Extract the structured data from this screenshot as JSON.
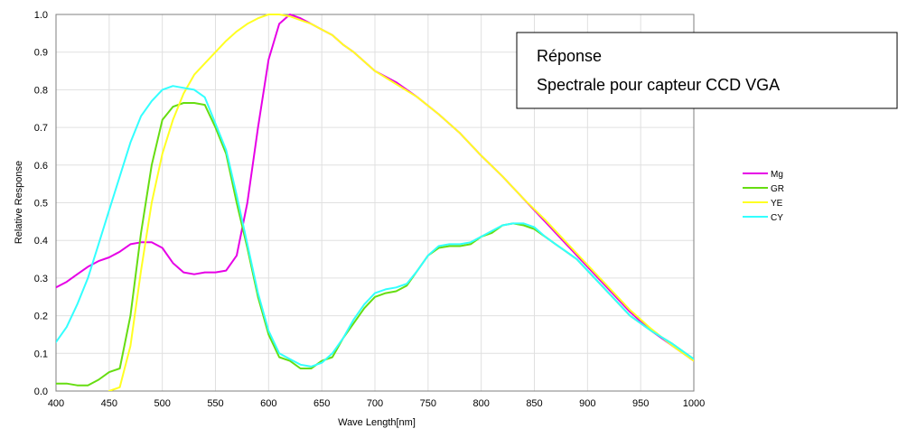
{
  "chart_data": {
    "type": "line",
    "title": "",
    "xlabel": "Wave Length[nm]",
    "ylabel": "Relative Response",
    "xlim": [
      400,
      1000
    ],
    "ylim": [
      0.0,
      1.0
    ],
    "xticks": [
      "400",
      "450",
      "500",
      "550",
      "600",
      "650",
      "700",
      "750",
      "800",
      "850",
      "900",
      "950",
      "1000"
    ],
    "yticks": [
      "0.0",
      "0.1",
      "0.2",
      "0.3",
      "0.4",
      "0.5",
      "0.6",
      "0.7",
      "0.8",
      "0.9",
      "1.0"
    ],
    "grid": true,
    "legend_position": "right",
    "annotation": {
      "line1": "Réponse",
      "line2": "Spectrale pour capteur CCD VGA"
    },
    "series": [
      {
        "name": "Mg",
        "color": "#e600e6",
        "x": [
          400,
          410,
          420,
          430,
          440,
          450,
          460,
          470,
          480,
          490,
          500,
          510,
          520,
          530,
          540,
          550,
          560,
          570,
          580,
          590,
          600,
          610,
          620,
          630,
          640,
          650,
          660,
          670,
          680,
          690,
          700,
          720,
          740,
          760,
          780,
          800,
          820,
          840,
          860,
          880,
          900,
          920,
          940,
          960,
          980,
          1000
        ],
        "y": [
          0.275,
          0.29,
          0.31,
          0.33,
          0.345,
          0.355,
          0.37,
          0.39,
          0.395,
          0.395,
          0.38,
          0.34,
          0.315,
          0.31,
          0.315,
          0.315,
          0.32,
          0.36,
          0.5,
          0.7,
          0.88,
          0.975,
          1.0,
          0.99,
          0.975,
          0.96,
          0.945,
          0.92,
          0.9,
          0.875,
          0.85,
          0.82,
          0.78,
          0.735,
          0.685,
          0.625,
          0.57,
          0.51,
          0.45,
          0.39,
          0.33,
          0.27,
          0.21,
          0.16,
          0.12,
          0.08
        ]
      },
      {
        "name": "GR",
        "color": "#66dd11",
        "x": [
          400,
          410,
          420,
          430,
          440,
          450,
          460,
          470,
          480,
          490,
          500,
          510,
          520,
          530,
          540,
          550,
          560,
          570,
          580,
          590,
          600,
          610,
          620,
          630,
          640,
          650,
          660,
          670,
          680,
          690,
          700,
          710,
          720,
          730,
          740,
          750,
          760,
          770,
          780,
          790,
          800,
          810,
          820,
          830,
          840,
          850,
          860,
          870,
          880,
          890,
          900,
          920,
          940,
          960,
          980,
          1000
        ],
        "y": [
          0.02,
          0.02,
          0.015,
          0.015,
          0.03,
          0.05,
          0.06,
          0.2,
          0.42,
          0.6,
          0.72,
          0.755,
          0.765,
          0.765,
          0.76,
          0.7,
          0.63,
          0.5,
          0.38,
          0.25,
          0.15,
          0.09,
          0.08,
          0.06,
          0.06,
          0.08,
          0.09,
          0.14,
          0.18,
          0.22,
          0.25,
          0.26,
          0.265,
          0.28,
          0.32,
          0.36,
          0.38,
          0.385,
          0.385,
          0.39,
          0.41,
          0.42,
          0.44,
          0.445,
          0.44,
          0.43,
          0.41,
          0.39,
          0.37,
          0.35,
          0.32,
          0.26,
          0.2,
          0.16,
          0.125,
          0.085
        ]
      },
      {
        "name": "YE",
        "color": "#ffff22",
        "x": [
          450,
          460,
          470,
          480,
          490,
          500,
          510,
          520,
          530,
          540,
          550,
          560,
          570,
          580,
          590,
          600,
          610,
          620,
          630,
          640,
          650,
          660,
          670,
          680,
          690,
          700,
          720,
          740,
          760,
          780,
          800,
          820,
          840,
          860,
          880,
          900,
          920,
          940,
          960,
          980,
          1000
        ],
        "y": [
          0.0,
          0.01,
          0.12,
          0.32,
          0.5,
          0.63,
          0.72,
          0.79,
          0.84,
          0.87,
          0.9,
          0.93,
          0.955,
          0.975,
          0.99,
          1.0,
          1.0,
          0.995,
          0.985,
          0.975,
          0.96,
          0.945,
          0.92,
          0.9,
          0.875,
          0.85,
          0.815,
          0.78,
          0.735,
          0.685,
          0.625,
          0.57,
          0.51,
          0.455,
          0.395,
          0.335,
          0.275,
          0.215,
          0.165,
          0.12,
          0.08
        ]
      },
      {
        "name": "CY",
        "color": "#33ffff",
        "x": [
          400,
          410,
          420,
          430,
          440,
          450,
          460,
          470,
          480,
          490,
          500,
          510,
          520,
          530,
          540,
          550,
          560,
          570,
          580,
          590,
          600,
          610,
          620,
          630,
          640,
          650,
          660,
          670,
          680,
          690,
          700,
          710,
          720,
          730,
          740,
          750,
          760,
          770,
          780,
          790,
          800,
          810,
          820,
          830,
          840,
          850,
          860,
          870,
          880,
          890,
          900,
          920,
          940,
          960,
          980,
          1000
        ],
        "y": [
          0.13,
          0.17,
          0.23,
          0.3,
          0.39,
          0.48,
          0.57,
          0.66,
          0.73,
          0.77,
          0.8,
          0.81,
          0.805,
          0.8,
          0.78,
          0.71,
          0.64,
          0.52,
          0.39,
          0.26,
          0.16,
          0.1,
          0.085,
          0.07,
          0.065,
          0.075,
          0.1,
          0.14,
          0.19,
          0.23,
          0.26,
          0.27,
          0.275,
          0.285,
          0.32,
          0.36,
          0.385,
          0.39,
          0.39,
          0.395,
          0.41,
          0.425,
          0.44,
          0.445,
          0.445,
          0.435,
          0.41,
          0.39,
          0.37,
          0.35,
          0.32,
          0.26,
          0.2,
          0.16,
          0.125,
          0.085
        ]
      }
    ]
  }
}
